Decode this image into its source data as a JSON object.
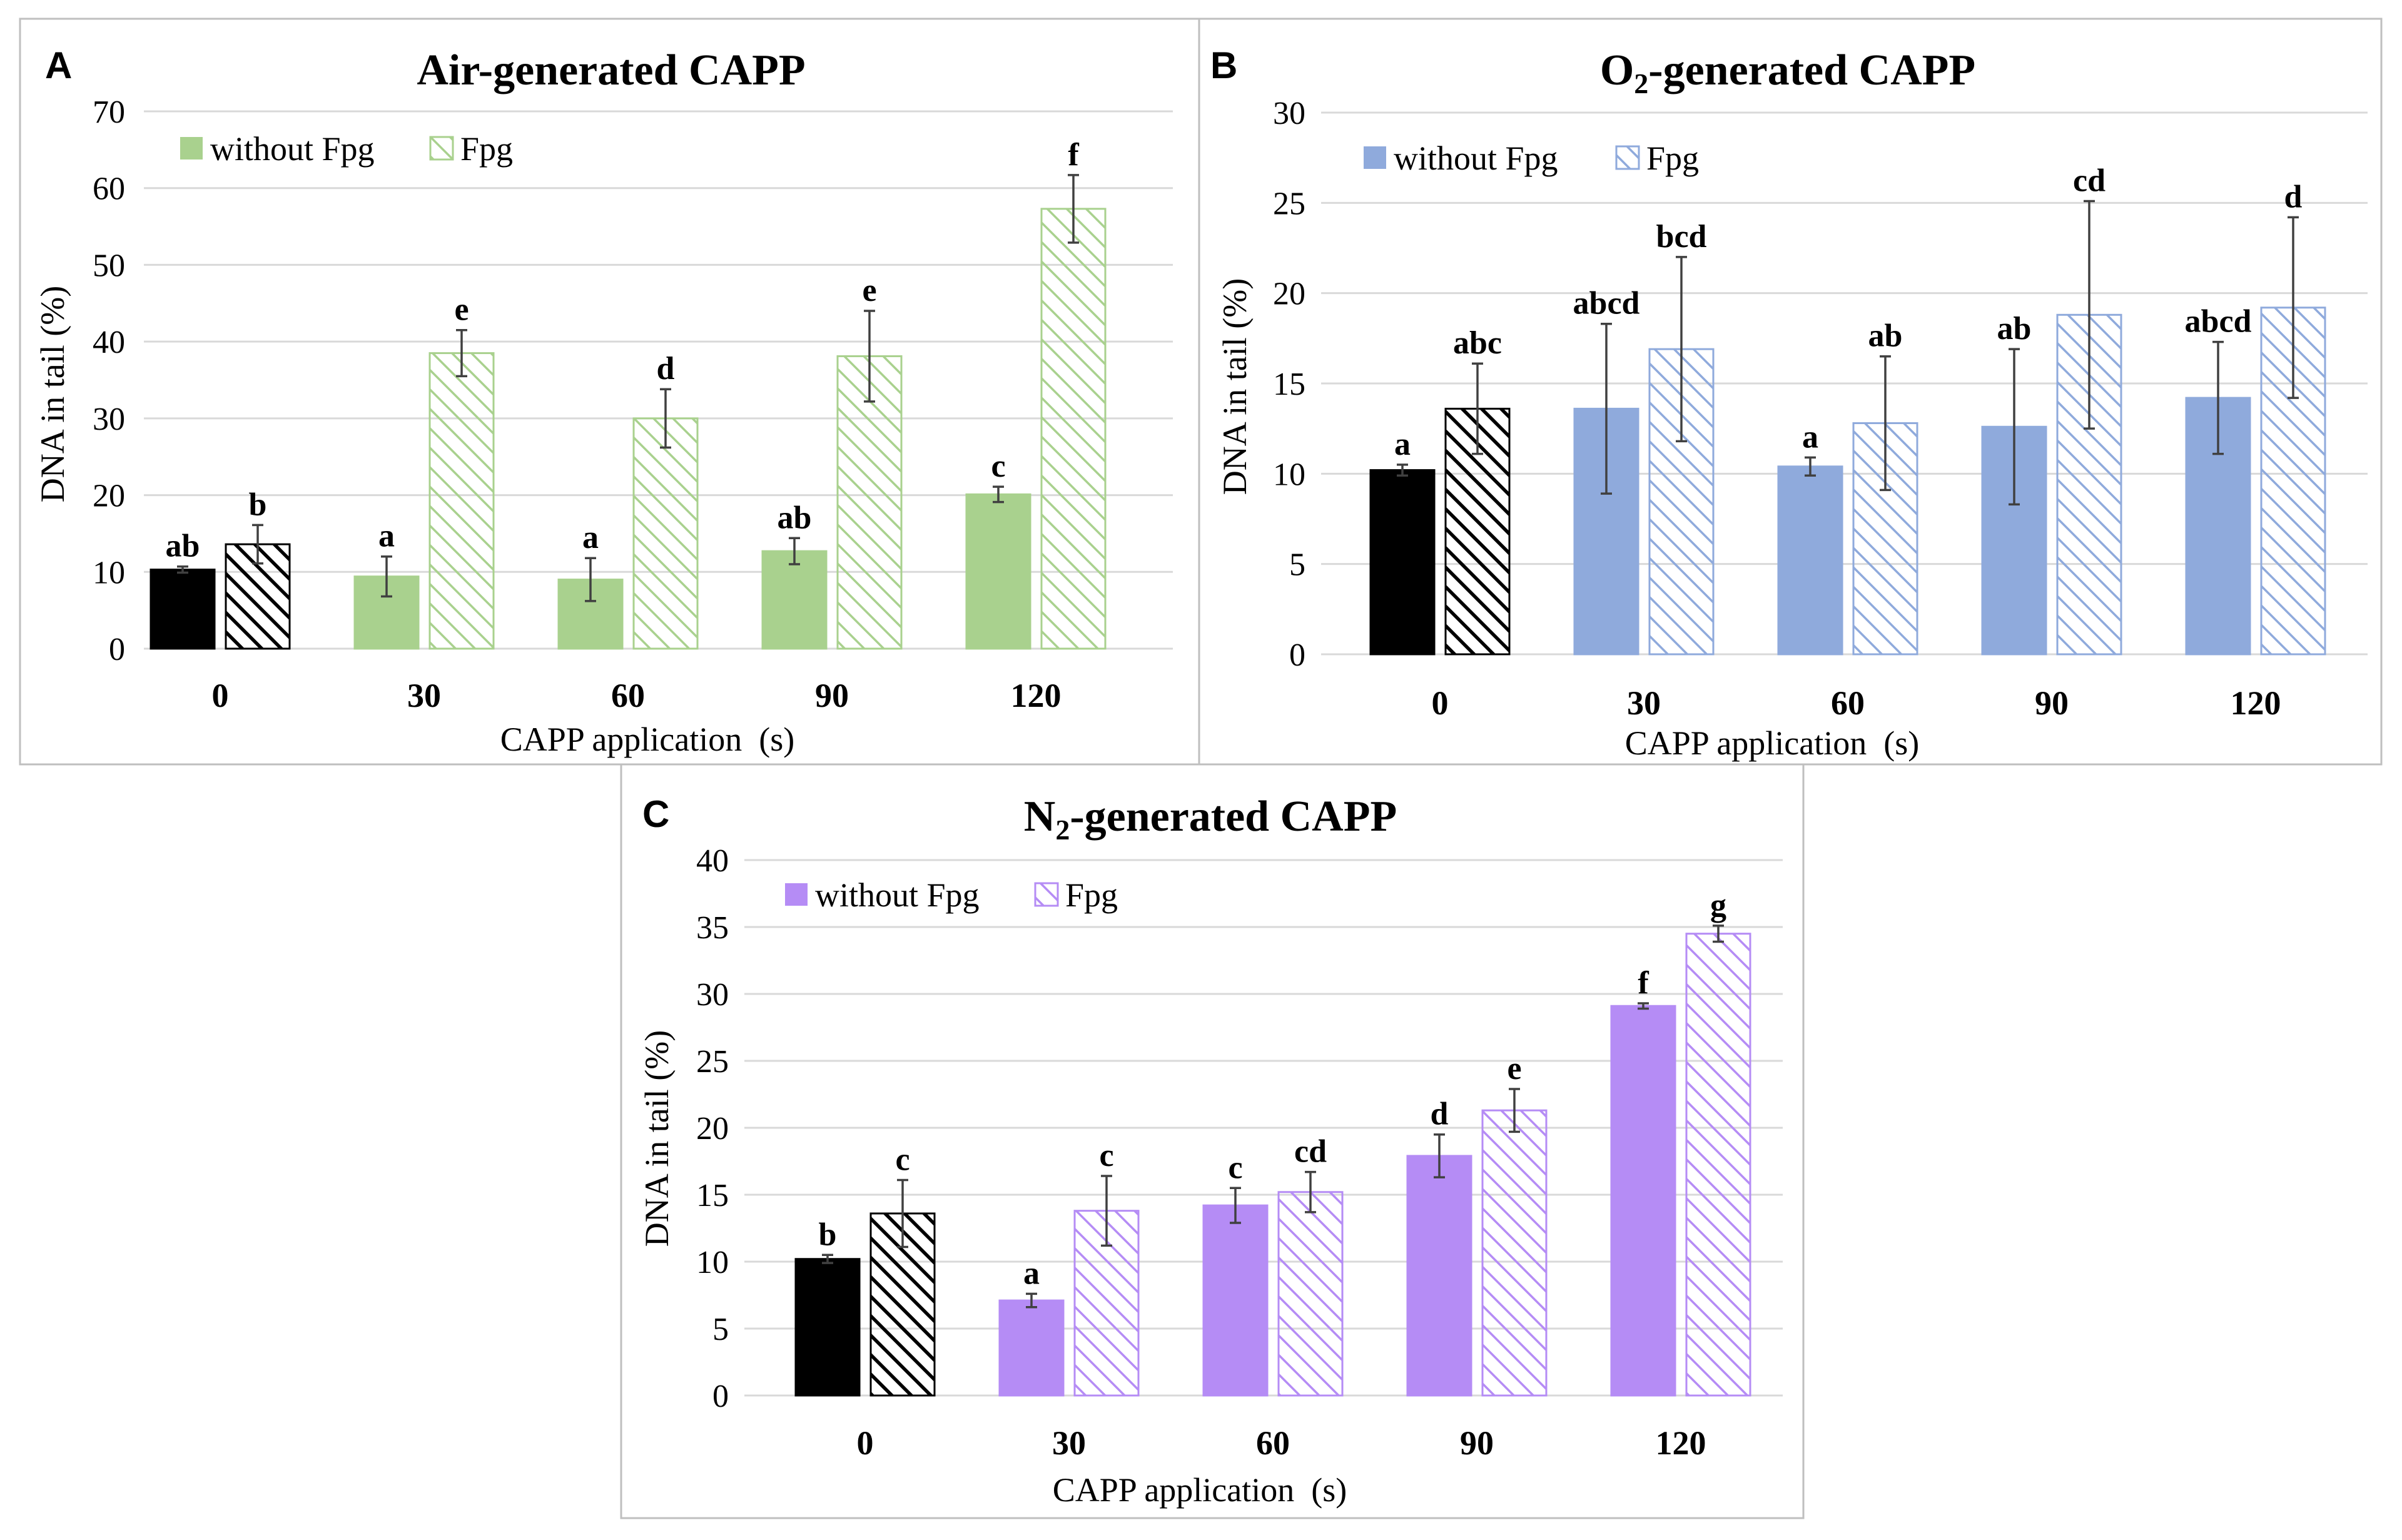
{
  "chart_data": [
    {
      "panel": "A",
      "type": "bar",
      "title": "Air-generated CAPP",
      "xlabel": "CAPP application  (s)",
      "ylabel": "DNA in tail (%)",
      "ylim": [
        0,
        70
      ],
      "yticks": [
        0,
        10,
        20,
        30,
        40,
        50,
        60,
        70
      ],
      "categories": [
        "0",
        "30",
        "60",
        "90",
        "120"
      ],
      "color": "#a9d18e",
      "control_color": "#000000",
      "legend": [
        "without Fpg",
        "Fpg"
      ],
      "series": [
        {
          "name": "without Fpg",
          "values": [
            10.3,
            9.4,
            9.0,
            12.7,
            20.1
          ],
          "errors": [
            0.4,
            2.6,
            2.8,
            1.7,
            1.0
          ],
          "labels": [
            "ab",
            "a",
            "a",
            "ab",
            "c"
          ]
        },
        {
          "name": "Fpg",
          "values": [
            13.6,
            38.5,
            30.0,
            38.1,
            57.3
          ],
          "errors": [
            2.5,
            3.0,
            3.8,
            5.9,
            4.4
          ],
          "labels": [
            "b",
            "e",
            "d",
            "e",
            "f"
          ]
        }
      ]
    },
    {
      "panel": "B",
      "type": "bar",
      "title_main": "O",
      "title_sub": "2",
      "title_rest": "-generated CAPP",
      "xlabel": "CAPP application  (s)",
      "ylabel": "DNA in tail (%)",
      "ylim": [
        0,
        30
      ],
      "yticks": [
        0,
        5,
        10,
        15,
        20,
        25,
        30
      ],
      "categories": [
        "0",
        "30",
        "60",
        "90",
        "120"
      ],
      "color": "#8faadc",
      "control_color": "#000000",
      "legend": [
        "without Fpg",
        "Fpg"
      ],
      "series": [
        {
          "name": "without Fpg",
          "values": [
            10.2,
            13.6,
            10.4,
            12.6,
            14.2
          ],
          "errors": [
            0.3,
            4.7,
            0.5,
            4.3,
            3.1
          ],
          "labels": [
            "a",
            "abcd",
            "a",
            "ab",
            "abcd"
          ]
        },
        {
          "name": "Fpg",
          "values": [
            13.6,
            16.9,
            12.8,
            18.8,
            19.2
          ],
          "errors": [
            2.5,
            5.1,
            3.7,
            6.3,
            5.0
          ],
          "labels": [
            "abc",
            "bcd",
            "ab",
            "cd",
            "d"
          ]
        }
      ]
    },
    {
      "panel": "C",
      "type": "bar",
      "title_main": "N",
      "title_sub": "2",
      "title_rest": "-generated CAPP",
      "xlabel": "CAPP application  (s)",
      "ylabel": "DNA in tail (%)",
      "ylim": [
        0,
        40
      ],
      "yticks": [
        0,
        5,
        10,
        15,
        20,
        25,
        30,
        35,
        40
      ],
      "categories": [
        "0",
        "30",
        "60",
        "90",
        "120"
      ],
      "color": "#b58cf5",
      "control_color": "#000000",
      "legend": [
        "without Fpg",
        "Fpg"
      ],
      "series": [
        {
          "name": "without Fpg",
          "values": [
            10.2,
            7.1,
            14.2,
            17.9,
            29.1
          ],
          "errors": [
            0.3,
            0.5,
            1.3,
            1.6,
            0.2
          ],
          "labels": [
            "b",
            "a",
            "c",
            "d",
            "f"
          ]
        },
        {
          "name": "Fpg",
          "values": [
            13.6,
            13.8,
            15.2,
            21.3,
            34.5
          ],
          "errors": [
            2.5,
            2.6,
            1.5,
            1.6,
            0.6
          ],
          "labels": [
            "c",
            "c",
            "cd",
            "e",
            "g"
          ]
        }
      ]
    }
  ]
}
